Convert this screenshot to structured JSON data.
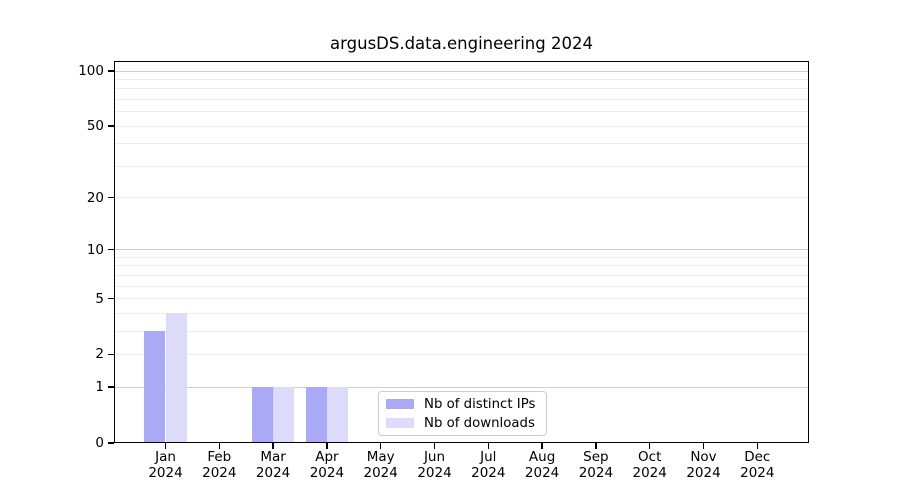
{
  "title": "argusDS.data.engineering 2024",
  "colors": {
    "distinct_ips": "#a9a9f5",
    "downloads": "#dcdcfa",
    "grid_major": "#cfcfcf",
    "grid_minor": "#ededed",
    "axis": "#000000",
    "legend_border": "#cccccc",
    "background": "#ffffff"
  },
  "legend": {
    "items": [
      {
        "label": "Nb of distinct IPs",
        "swatch": "distinct_ips"
      },
      {
        "label": "Nb of downloads",
        "swatch": "downloads"
      }
    ]
  },
  "y_axis": {
    "ticks": [
      {
        "value": 100,
        "label": "100"
      },
      {
        "value": 50,
        "label": "50"
      },
      {
        "value": 20,
        "label": "20"
      },
      {
        "value": 10,
        "label": "10"
      },
      {
        "value": 5,
        "label": "5"
      },
      {
        "value": 2,
        "label": "2"
      },
      {
        "value": 1,
        "label": "1"
      },
      {
        "value": 0,
        "label": "0"
      }
    ]
  },
  "x_axis": {
    "months": [
      "Jan",
      "Feb",
      "Mar",
      "Apr",
      "May",
      "Jun",
      "Jul",
      "Aug",
      "Sep",
      "Oct",
      "Nov",
      "Dec"
    ],
    "year": "2024"
  },
  "chart_data": {
    "type": "bar",
    "title": "argusDS.data.engineering 2024",
    "categories": [
      "Jan 2024",
      "Feb 2024",
      "Mar 2024",
      "Apr 2024",
      "May 2024",
      "Jun 2024",
      "Jul 2024",
      "Aug 2024",
      "Sep 2024",
      "Oct 2024",
      "Nov 2024",
      "Dec 2024"
    ],
    "series": [
      {
        "name": "Nb of distinct IPs",
        "color": "#a9a9f5",
        "values": [
          3,
          0,
          1,
          1,
          0,
          0,
          0,
          0,
          0,
          0,
          0,
          0
        ]
      },
      {
        "name": "Nb of downloads",
        "color": "#dcdcfa",
        "values": [
          4,
          0,
          1,
          1,
          0,
          0,
          0,
          0,
          0,
          0,
          0,
          0
        ]
      }
    ],
    "yscale": "log1p",
    "ylim": [
      0,
      110
    ],
    "yticks": [
      0,
      1,
      2,
      5,
      10,
      20,
      50,
      100
    ],
    "grid": "horizontal, minor log gridlines, majors at 1/10/100",
    "legend_position": "lower center inside plot"
  }
}
